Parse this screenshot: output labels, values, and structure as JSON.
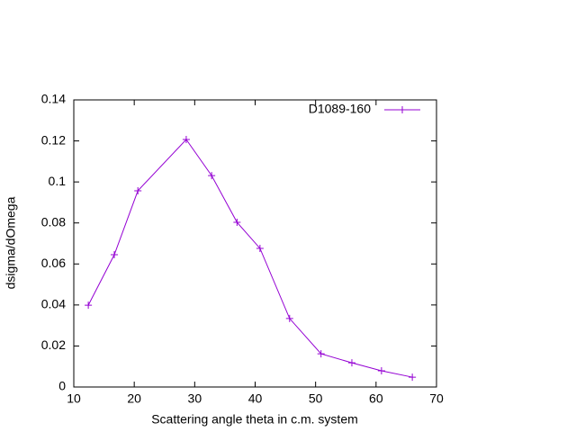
{
  "chart_data": {
    "type": "line",
    "xlabel": "Scattering angle theta in c.m. system",
    "ylabel": "dsigma/dOmega",
    "x": [
      12.4,
      16.7,
      20.6,
      28.6,
      32.8,
      37.0,
      40.8,
      45.7,
      50.9,
      56.0,
      60.9,
      66.0
    ],
    "series": [
      {
        "name": "D1089-160",
        "color": "#9400d3",
        "values": [
          0.0399,
          0.0645,
          0.0957,
          0.1207,
          0.1031,
          0.0803,
          0.0676,
          0.0334,
          0.0162,
          0.0118,
          0.0079,
          0.0048
        ]
      }
    ],
    "xlim": [
      10,
      70
    ],
    "xticks": [
      10,
      20,
      30,
      40,
      50,
      60,
      70
    ],
    "ylim": [
      0,
      0.14
    ],
    "yticks": [
      0,
      0.02,
      0.04,
      0.06,
      0.08,
      0.1,
      0.12,
      0.14
    ],
    "legend": "top-right",
    "grid": false
  }
}
